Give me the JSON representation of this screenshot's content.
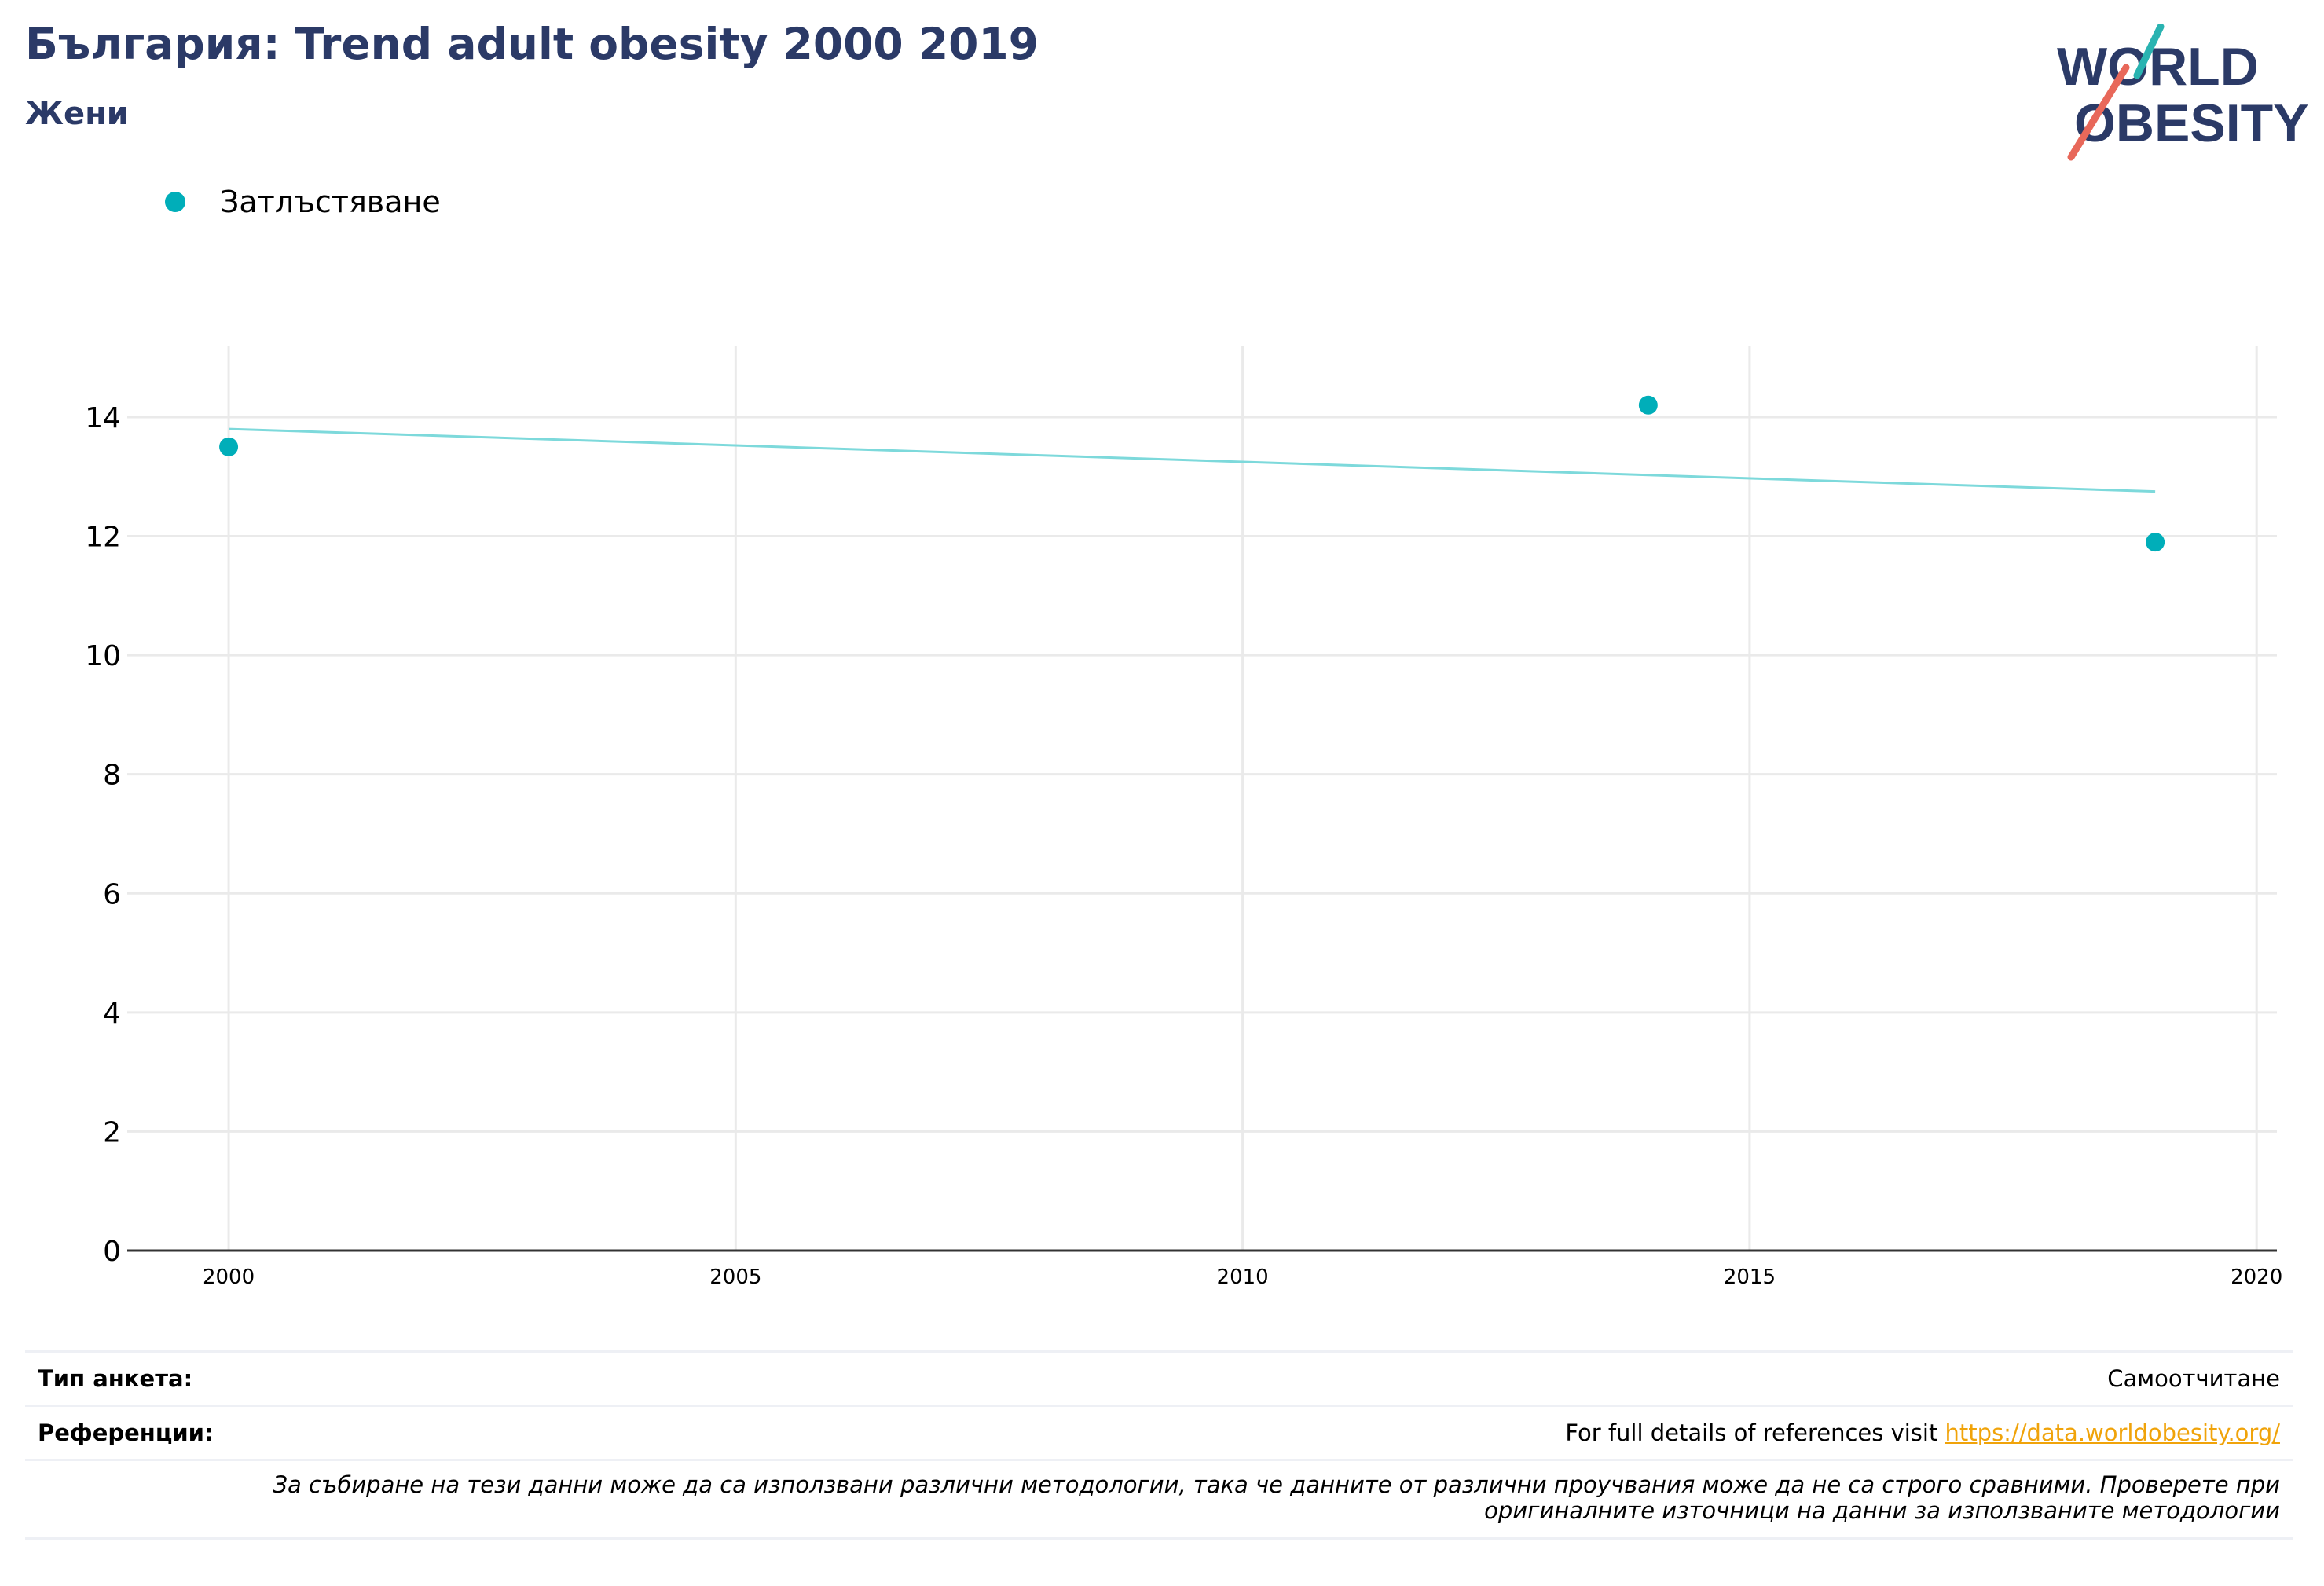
{
  "header": {
    "title": "България: Trend adult obesity 2000 2019",
    "subtitle": "Жени"
  },
  "logo": {
    "line1": "WORLD",
    "line2": "OBESITY",
    "accent_teal": "#2ab3b1",
    "accent_red": "#e8685a",
    "text_color": "#2b3a67"
  },
  "colors": {
    "series": "#00aeb9",
    "trend": "#7dd9db",
    "grid": "#eaeaea",
    "axis": "#333333",
    "link": "#f0a30a"
  },
  "chart_data": {
    "type": "scatter",
    "title": "България: Trend adult obesity 2000 2019",
    "subtitle": "Жени",
    "xlim": [
      1999,
      2020.2
    ],
    "ylim": [
      0,
      15.2
    ],
    "x_ticks": [
      2000,
      2005,
      2010,
      2015,
      2020
    ],
    "y_ticks": [
      0,
      2,
      4,
      6,
      8,
      10,
      12,
      14
    ],
    "grid": true,
    "legend_position": "top-left",
    "series": [
      {
        "name": "Затлъстяване",
        "x": [
          2000,
          2014,
          2019
        ],
        "y": [
          13.5,
          14.2,
          11.9
        ]
      }
    ],
    "trendline": {
      "x": [
        2000,
        2019
      ],
      "y": [
        13.8,
        12.75
      ]
    }
  },
  "footer": {
    "survey_label": "Тип анкета:",
    "survey_value": "Самоотчитане",
    "refs_label": "Референции:",
    "refs_text": "For full details of references visit ",
    "refs_link": "https://data.worldobesity.org/",
    "note_line1": "За събиране на тези данни може да са използвани различни методологии, така че данните от различни проучвания може да не са строго сравними. Проверете при",
    "note_line2": "оригиналните източници на данни за използваните методологии"
  }
}
